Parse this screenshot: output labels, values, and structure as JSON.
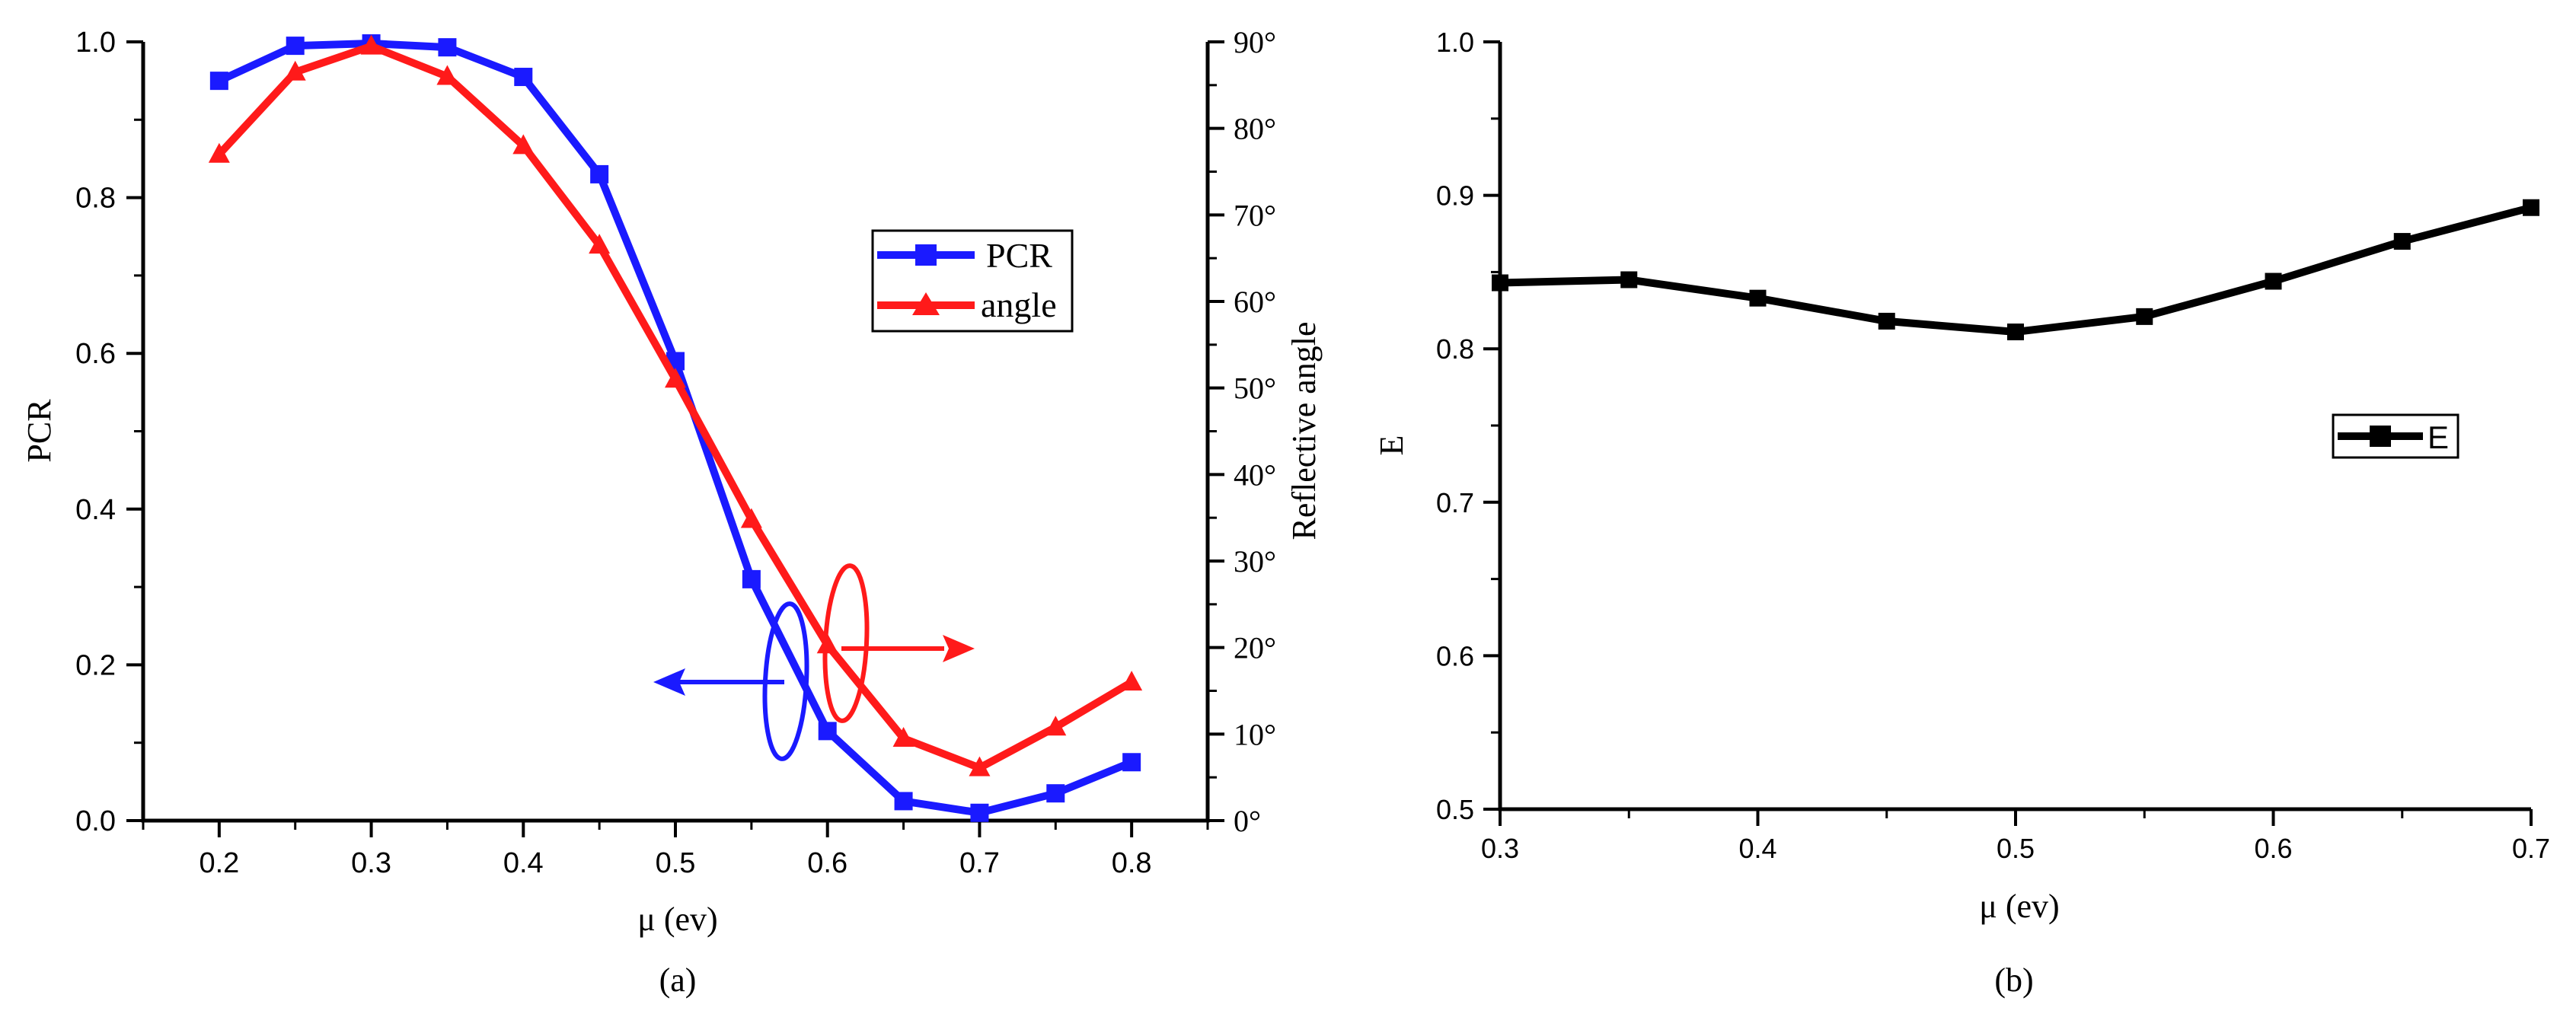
{
  "chart_data": [
    {
      "id": "a",
      "type": "line",
      "caption": "(a)",
      "xlabel": "μ (ev)",
      "ylabel": "PCR",
      "y2label": "Reflective angle",
      "xlim": [
        0.15,
        0.85
      ],
      "ylim": [
        0.0,
        1.0
      ],
      "y2lim": [
        0,
        90
      ],
      "xticks": [
        "0.2",
        "0.3",
        "0.4",
        "0.5",
        "0.6",
        "0.7",
        "0.8"
      ],
      "yticks": [
        "0.0",
        "0.2",
        "0.4",
        "0.6",
        "0.8",
        "1.0"
      ],
      "y2ticks": [
        "0°",
        "10°",
        "20°",
        "30°",
        "40°",
        "50°",
        "60°",
        "70°",
        "80°",
        "90°"
      ],
      "x": [
        0.2,
        0.25,
        0.3,
        0.35,
        0.4,
        0.45,
        0.5,
        0.55,
        0.6,
        0.65,
        0.7,
        0.75,
        0.8
      ],
      "series": [
        {
          "name": "PCR",
          "axis": "left",
          "marker": "square",
          "color": "#1a1aff",
          "values": [
            0.95,
            0.995,
            0.998,
            0.993,
            0.955,
            0.83,
            0.59,
            0.31,
            0.115,
            0.025,
            0.01,
            0.035,
            0.075
          ]
        },
        {
          "name": "angle",
          "axis": "right",
          "marker": "triangle",
          "color": "#ff1a1a",
          "values": [
            77,
            86.5,
            89.5,
            86,
            78,
            66.5,
            51,
            34.8,
            20.3,
            9.5,
            6.1,
            10.8,
            16
          ]
        }
      ],
      "legend": {
        "position": "right-middle",
        "entries": [
          "PCR",
          "angle"
        ]
      },
      "annotations": [
        {
          "kind": "ellipse-arrow",
          "points_to": "left axis",
          "color": "#1a1aff"
        },
        {
          "kind": "ellipse-arrow",
          "points_to": "right axis",
          "color": "#ff1a1a"
        }
      ]
    },
    {
      "id": "b",
      "type": "line",
      "caption": "(b)",
      "xlabel": "μ (ev)",
      "ylabel": "E",
      "xlim": [
        0.3,
        0.7
      ],
      "ylim": [
        0.5,
        1.0
      ],
      "xticks": [
        "0.3",
        "0.4",
        "0.5",
        "0.6",
        "0.7"
      ],
      "yticks": [
        "0.5",
        "0.6",
        "0.7",
        "0.8",
        "0.9",
        "1.0"
      ],
      "x": [
        0.3,
        0.35,
        0.4,
        0.45,
        0.5,
        0.55,
        0.6,
        0.65,
        0.7
      ],
      "series": [
        {
          "name": "E",
          "marker": "square",
          "color": "#000000",
          "values": [
            0.843,
            0.845,
            0.833,
            0.818,
            0.811,
            0.821,
            0.844,
            0.87,
            0.892
          ]
        }
      ],
      "legend": {
        "position": "right-middle",
        "entries": [
          "E"
        ]
      }
    }
  ]
}
